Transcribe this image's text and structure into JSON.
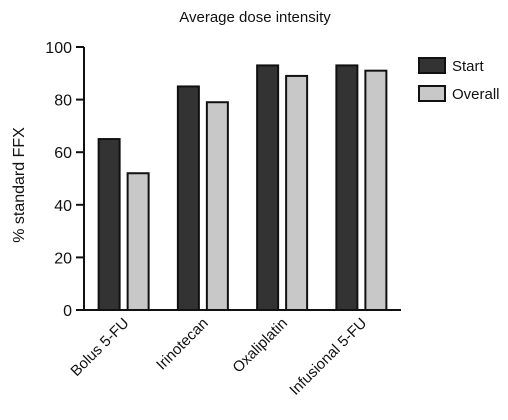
{
  "chart_data": {
    "type": "bar",
    "title": "Average dose intensity",
    "xlabel": "",
    "ylabel": "% standard FFX",
    "categories": [
      "Bolus 5-FU",
      "Irinotecan",
      "Oxaliplatin",
      "Infusional 5-FU"
    ],
    "series": [
      {
        "name": "Start",
        "values": [
          65,
          85,
          93,
          93
        ],
        "color": "#333333"
      },
      {
        "name": "Overall",
        "values": [
          52,
          79,
          89,
          91
        ],
        "color": "#c8c8c8"
      }
    ],
    "ylim": [
      0,
      100
    ],
    "yticks": [
      0,
      20,
      40,
      60,
      80,
      100
    ],
    "grid": false,
    "legend": "top-right"
  }
}
